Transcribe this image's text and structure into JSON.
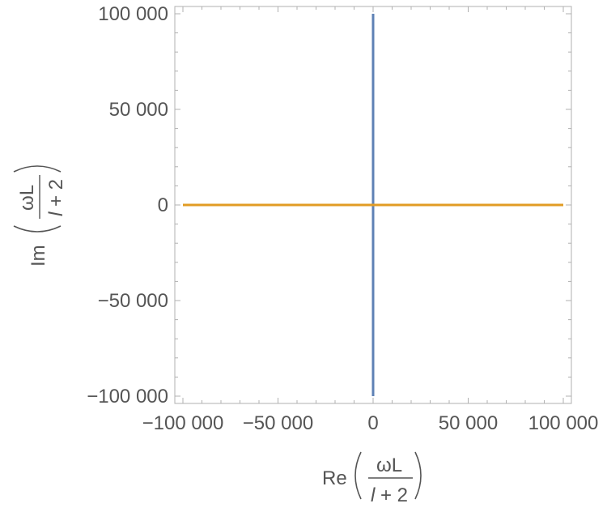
{
  "chart_data": {
    "type": "line",
    "title": "",
    "xlabel": {
      "prefix": "Re",
      "numerator": "ωL",
      "denominator_var": "l",
      "denominator_rest": " + 2"
    },
    "ylabel": {
      "prefix": "Im",
      "numerator": "ωL",
      "denominator_var": "l",
      "denominator_rest": " + 2"
    },
    "xlim": [
      -100000,
      100000
    ],
    "ylim": [
      -100000,
      100000
    ],
    "xticks": [
      {
        "value": -100000,
        "label": "−100 000"
      },
      {
        "value": -50000,
        "label": "−50 000"
      },
      {
        "value": 0,
        "label": "0"
      },
      {
        "value": 50000,
        "label": "50 000"
      },
      {
        "value": 100000,
        "label": "100 000"
      }
    ],
    "yticks": [
      {
        "value": -100000,
        "label": "−100 000"
      },
      {
        "value": -50000,
        "label": "−50 000"
      },
      {
        "value": 0,
        "label": "0"
      },
      {
        "value": 50000,
        "label": "50 000"
      },
      {
        "value": 100000,
        "label": "100 000"
      }
    ],
    "grid": false,
    "series": [
      {
        "color": "#5E81B5",
        "x": [
          0,
          0
        ],
        "y": [
          -100000,
          100000
        ]
      },
      {
        "color": "#E19C24",
        "x": [
          -100000,
          100000
        ],
        "y": [
          0,
          0
        ]
      }
    ]
  }
}
